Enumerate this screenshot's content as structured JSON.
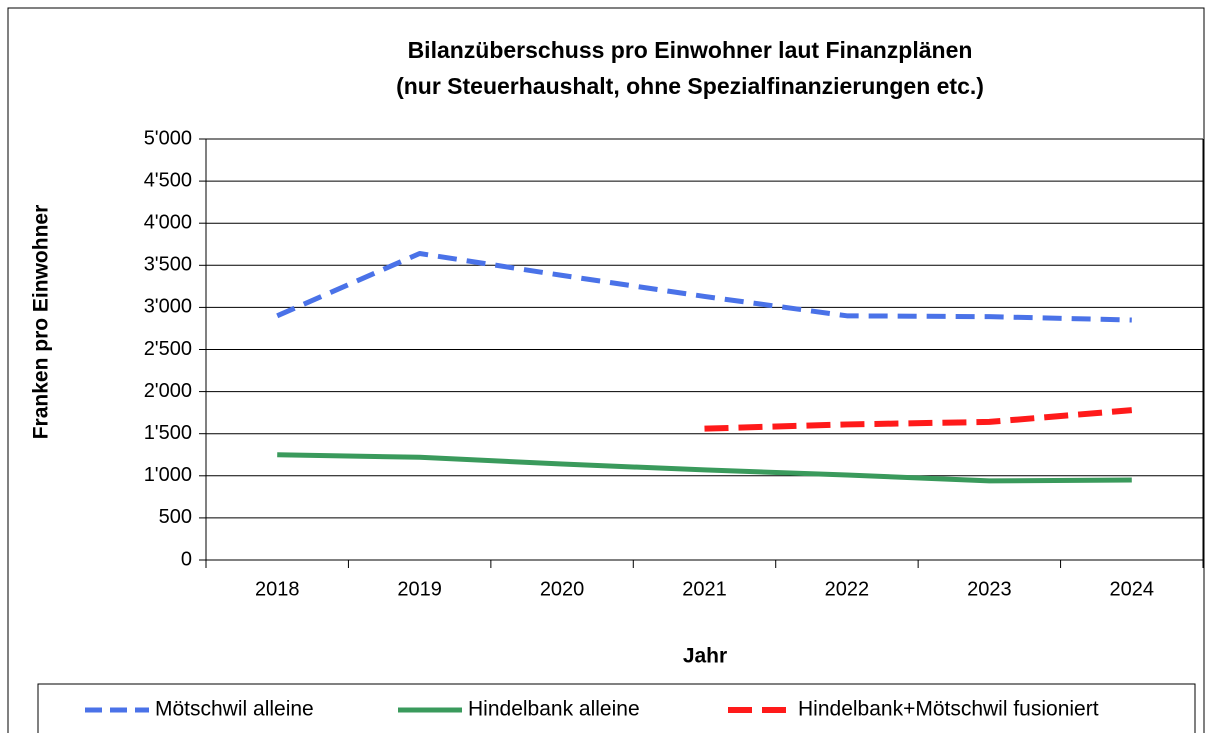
{
  "chart_data": {
    "type": "line",
    "title": "Bilanzüberschuss pro Einwohner laut Finanzplänen",
    "subtitle": "(nur Steuerhaushalt, ohne Spezialfinanzierungen etc.)",
    "x_label": "Jahr",
    "y_label": "Franken pro Einwohner",
    "categories": [
      "2018",
      "2019",
      "2020",
      "2021",
      "2022",
      "2023",
      "2024"
    ],
    "series": [
      {
        "name": "Mötschwil alleine",
        "color": "#4a72e8",
        "dash": true,
        "values": [
          2900,
          3640,
          3380,
          3130,
          2900,
          2890,
          2850
        ]
      },
      {
        "name": "Hindelbank alleine",
        "color": "#3a9a5c",
        "dash": false,
        "values": [
          1250,
          1220,
          1140,
          1070,
          1010,
          940,
          950
        ]
      },
      {
        "name": "Hindelbank+Mötschwil fusioniert",
        "color": "#ff1a1a",
        "dash": true,
        "values": [
          null,
          null,
          null,
          1560,
          1610,
          1640,
          1780
        ]
      }
    ],
    "ylim": [
      0,
      5000
    ],
    "yticks": [
      0,
      500,
      {
        "value": 1000,
        "label": "1'000"
      },
      {
        "value": 1500,
        "label": "1'500"
      },
      {
        "value": 2000,
        "label": "2'000"
      },
      {
        "value": 2500,
        "label": "2'500"
      },
      {
        "value": 3000,
        "label": "3'000"
      },
      {
        "value": 3500,
        "label": "3'500"
      },
      {
        "value": 4000,
        "label": "4'000"
      },
      {
        "value": 4500,
        "label": "4'500"
      },
      {
        "value": 5000,
        "label": "5'000"
      }
    ],
    "grid": true,
    "legend": "bottom"
  }
}
